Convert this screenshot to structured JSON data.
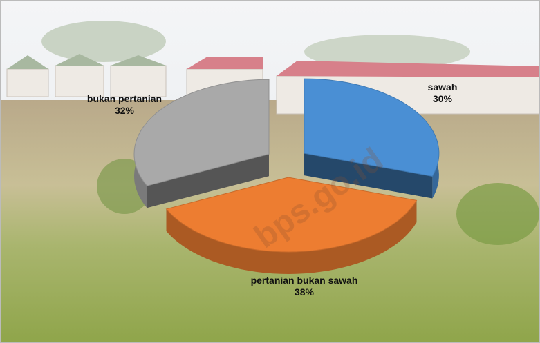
{
  "chart_data": {
    "type": "pie3d",
    "categories": [
      "sawah",
      "pertanian bukan sawah",
      "bukan pertanian"
    ],
    "values": [
      30,
      38,
      32
    ],
    "value_labels": [
      "30%",
      "38%",
      "32%"
    ],
    "colors": [
      "#4a8fd4",
      "#ed7d31",
      "#a9a9a9"
    ],
    "watermark": "bps.go.id"
  }
}
